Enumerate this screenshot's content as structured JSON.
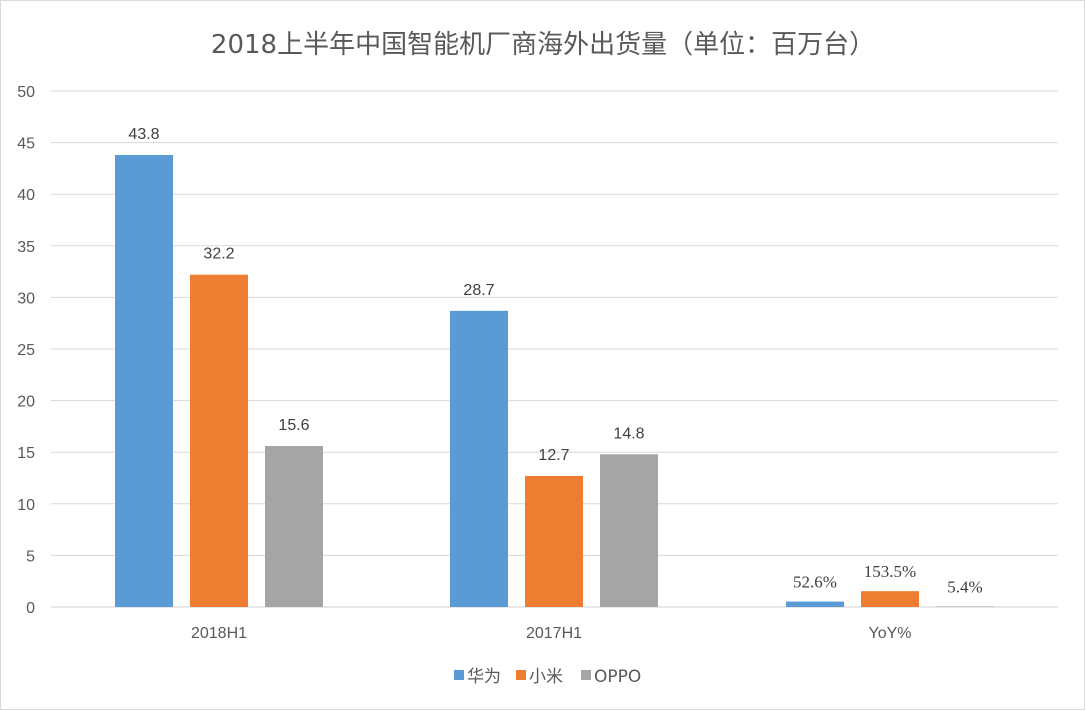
{
  "chart_data": {
    "type": "bar",
    "title": "2018上半年中国智能机厂商海外出货量（单位：百万台）",
    "categories": [
      "2018H1",
      "2017H1",
      "YoY%"
    ],
    "series": [
      {
        "name": "华为",
        "color": "#5b9bd5",
        "values": [
          43.8,
          28.7,
          0.526
        ],
        "labels": [
          "43.8",
          "28.7",
          "52.6%"
        ]
      },
      {
        "name": "小米",
        "color": "#ed7d31",
        "values": [
          32.2,
          12.7,
          1.535
        ],
        "labels": [
          "32.2",
          "12.7",
          "153.5%"
        ]
      },
      {
        "name": "OPPO",
        "color": "#a5a5a5",
        "values": [
          15.6,
          14.8,
          0.054
        ],
        "labels": [
          "15.6",
          "14.8",
          "5.4%"
        ]
      }
    ],
    "yticks": [
      "0",
      "5",
      "10",
      "15",
      "20",
      "25",
      "30",
      "35",
      "40",
      "45",
      "50"
    ],
    "ylim": [
      0,
      50
    ],
    "xlabel": "",
    "ylabel": "",
    "grid": true,
    "legend_position": "bottom"
  }
}
